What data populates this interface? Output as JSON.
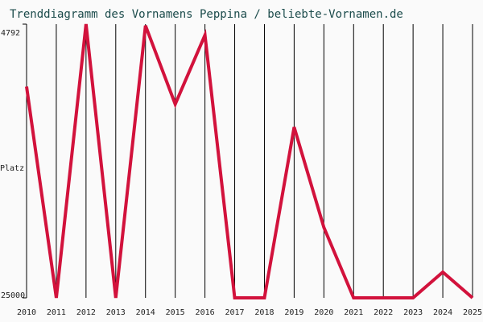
{
  "chart_data": {
    "type": "line",
    "title": "Trenddiagramm des Vornamens Peppina / beliebte-Vornamen.de",
    "y_label": "Platz",
    "categories": [
      "2010",
      "2011",
      "2012",
      "2013",
      "2014",
      "2015",
      "2016",
      "2017",
      "2018",
      "2019",
      "2020",
      "2021",
      "2022",
      "2023",
      "2024",
      "2025"
    ],
    "values": [
      9400,
      25000,
      4792,
      25000,
      4900,
      10700,
      5600,
      25000,
      25000,
      12400,
      19800,
      25000,
      25000,
      25000,
      23100,
      25000
    ],
    "color": "#d2123c",
    "ylim": [
      4792,
      25000
    ],
    "y_inverted": true,
    "yticks": [
      4792,
      25000
    ],
    "grid": true
  }
}
